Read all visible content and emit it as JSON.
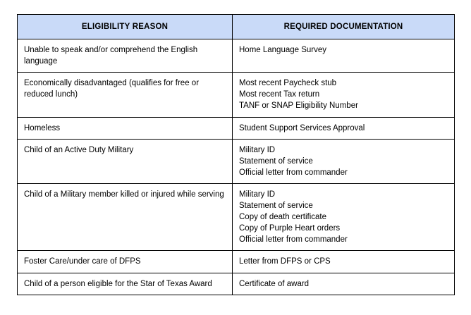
{
  "colors": {
    "header_bg": "#c9daf8",
    "border": "#000000",
    "page_bg": "#ffffff"
  },
  "table": {
    "headers": [
      "ELIGIBILITY REASON",
      "REQUIRED DOCUMENTATION"
    ],
    "rows": [
      {
        "reason": "Unable to speak and/or comprehend the English language",
        "docs": "Home Language Survey"
      },
      {
        "reason": "Economically disadvantaged (qualifies for free or reduced lunch)",
        "docs": "Most recent Paycheck stub\nMost recent Tax return\nTANF or SNAP Eligibility Number"
      },
      {
        "reason": "Homeless",
        "docs": "Student Support Services Approval"
      },
      {
        "reason": "Child of an Active Duty Military",
        "docs": "Military ID\nStatement of service\nOfficial letter from commander"
      },
      {
        "reason": "Child of a Military member killed or injured while serving",
        "docs": "Military ID\nStatement of service\nCopy of death certificate\nCopy of Purple Heart orders\nOfficial letter from commander"
      },
      {
        "reason": "Foster Care/under care of DFPS",
        "docs": "Letter from DFPS or CPS"
      },
      {
        "reason": "Child of a person eligible for the Star of Texas Award",
        "docs": "Certificate of award"
      }
    ]
  }
}
